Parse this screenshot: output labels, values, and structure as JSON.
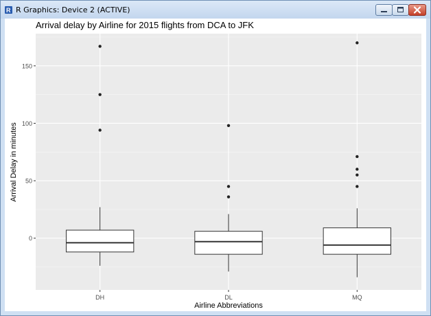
{
  "window": {
    "title": "R Graphics: Device 2 (ACTIVE)"
  },
  "icons": {
    "app": "r-logo-icon",
    "minimize": "minimize-icon",
    "maximize": "maximize-icon",
    "close": "close-icon"
  },
  "colors": {
    "panel_background": "#ebebeb",
    "grid_major": "#ffffff",
    "box_fill": "#ffffff",
    "box_stroke": "#333333",
    "close_button": "#c4402a"
  },
  "chart_data": {
    "type": "boxplot",
    "title": "Arrival delay by Airline for 2015 flights from DCA to JFK",
    "xlabel": "Airline Abbreviations",
    "ylabel": "Arrival Delay in minutes",
    "categories": [
      "DH",
      "DL",
      "MQ"
    ],
    "ylim": [
      -45,
      178
    ],
    "yticks": [
      0,
      50,
      100,
      150
    ],
    "grid": true,
    "boxes": [
      {
        "category": "DH",
        "lower_whisker": -24,
        "q1": -12,
        "median": -4,
        "q3": 7,
        "upper_whisker": 27,
        "outliers": [
          94,
          125,
          167
        ]
      },
      {
        "category": "DL",
        "lower_whisker": -29,
        "q1": -14,
        "median": -3,
        "q3": 6,
        "upper_whisker": 21,
        "outliers": [
          36,
          45,
          98
        ]
      },
      {
        "category": "MQ",
        "lower_whisker": -34,
        "q1": -14,
        "median": -6,
        "q3": 9,
        "upper_whisker": 26,
        "outliers": [
          45,
          55,
          60,
          71,
          170
        ]
      }
    ]
  }
}
